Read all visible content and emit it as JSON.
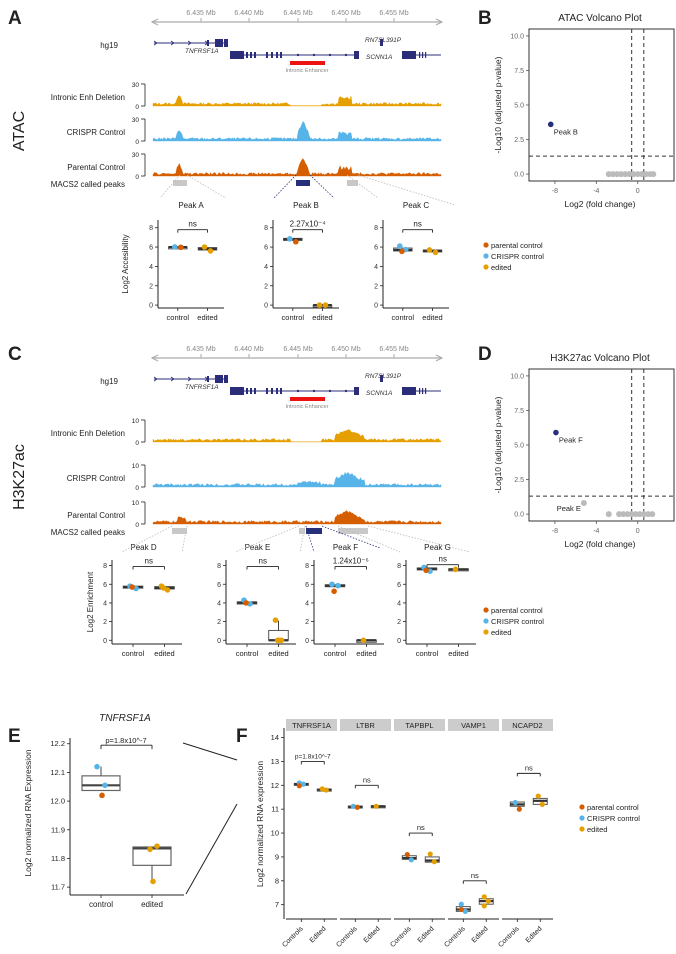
{
  "colors": {
    "parental": "#d55e00",
    "crispr": "#56b4e9",
    "edited": "#e69f00",
    "gene": "#2b2d7a",
    "enhancer": "#ee1111",
    "peak_grey": "#c8c8c8",
    "sig_point": "#26307a",
    "ns_point": "#bbbbbb",
    "facet_strip": "#cccccc"
  },
  "panels": {
    "A": "A",
    "B": "B",
    "C": "C",
    "D": "D",
    "E": "E",
    "F": "F"
  },
  "genome_track": {
    "axis_ticks": [
      "6.435 Mb",
      "6.440 Mb",
      "6.445 Mb",
      "6.450 Mb",
      "6.455 Mb"
    ],
    "assembly": "hg19",
    "genes": [
      "TNFRSF1A",
      "RN7SL391P",
      "SCNN1A"
    ],
    "enhancer_label": "Intronic Enhancer",
    "peaks_label": "MACS2 called peaks"
  },
  "atac": {
    "assay_label": "ATAC",
    "tracks": [
      {
        "label": "Intronic Enh Deletion",
        "ymax": "30",
        "ymin": "0",
        "color_key": "edited"
      },
      {
        "label": "CRISPR Control",
        "ymax": "30",
        "ymin": "0",
        "color_key": "crispr"
      },
      {
        "label": "Parental Control",
        "ymax": "30",
        "ymin": "0",
        "color_key": "parental"
      }
    ],
    "ylabel": "Log2 Accesibility",
    "peaks": [
      {
        "name": "Peak A",
        "stat": "ns"
      },
      {
        "name": "Peak B",
        "stat": "2.27x10⁻⁴"
      },
      {
        "name": "Peak C",
        "stat": "ns"
      }
    ]
  },
  "h3k27ac": {
    "assay_label": "H3K27ac",
    "tracks": [
      {
        "label": "Intronic Enh Deletion",
        "ymax": "10",
        "ymin": "0",
        "color_key": "edited"
      },
      {
        "label": "CRISPR Control",
        "ymax": "10",
        "ymin": "0",
        "color_key": "crispr"
      },
      {
        "label": "Parental Control",
        "ymax": "10",
        "ymin": "0",
        "color_key": "parental"
      }
    ],
    "ylabel": "Log2 Enrichment",
    "peaks": [
      {
        "name": "Peak D",
        "stat": "ns"
      },
      {
        "name": "Peak E",
        "stat": "ns"
      },
      {
        "name": "Peak F",
        "stat": "1.24x10⁻⁶"
      },
      {
        "name": "Peak G",
        "stat": "ns"
      }
    ]
  },
  "legend": [
    {
      "label": "parental control",
      "color_key": "parental"
    },
    {
      "label": "CRISPR control",
      "color_key": "crispr"
    },
    {
      "label": "edited",
      "color_key": "edited"
    }
  ],
  "chart_data": [
    {
      "id": "A",
      "type": "scatter",
      "title": "ATAC peak accessibility",
      "ylabel": "Log2 Accesibility",
      "ylim": [
        0,
        8
      ],
      "yticks": [
        "0",
        "2",
        "4",
        "6",
        "8"
      ],
      "categories": [
        "control",
        "edited"
      ],
      "facets": [
        {
          "name": "Peak A",
          "stat": "ns",
          "control": {
            "median": 6.0,
            "q1": 5.95,
            "q3": 6.02,
            "points": [
              {
                "v": 6.02,
                "g": "crispr"
              },
              {
                "v": 5.98,
                "g": "parental"
              }
            ]
          },
          "edited": {
            "median": 5.8,
            "q1": 5.7,
            "q3": 5.95,
            "points": [
              {
                "v": 6.0,
                "g": "edited"
              },
              {
                "v": 5.6,
                "g": "edited"
              }
            ]
          }
        },
        {
          "name": "Peak B",
          "stat": "2.27x10^-4",
          "control": {
            "median": 6.8,
            "q1": 6.7,
            "q3": 6.9,
            "points": [
              {
                "v": 6.85,
                "g": "crispr"
              },
              {
                "v": 6.55,
                "g": "parental"
              }
            ]
          },
          "edited": {
            "median": 0.0,
            "q1": 0.0,
            "q3": 0.0,
            "points": [
              {
                "v": 0.0,
                "g": "edited"
              },
              {
                "v": 0.0,
                "g": "edited"
              }
            ]
          }
        },
        {
          "name": "Peak C",
          "stat": "ns",
          "control": {
            "median": 5.7,
            "q1": 5.6,
            "q3": 5.9,
            "points": [
              {
                "v": 6.1,
                "g": "crispr"
              },
              {
                "v": 5.75,
                "g": "crispr"
              },
              {
                "v": 5.55,
                "g": "parental"
              }
            ]
          },
          "edited": {
            "median": 5.6,
            "q1": 5.55,
            "q3": 5.7,
            "points": [
              {
                "v": 5.7,
                "g": "edited"
              },
              {
                "v": 5.45,
                "g": "edited"
              }
            ]
          }
        }
      ]
    },
    {
      "id": "B",
      "type": "scatter",
      "title": "ATAC Volcano Plot",
      "xlabel": "Log2 (fold change)",
      "ylabel": "-Log10 (adjusted p-value)",
      "xlim": [
        -10.5,
        3.5
      ],
      "ylim": [
        -0.5,
        10.5
      ],
      "xticks": [
        "-8",
        "-4",
        "0"
      ],
      "yticks": [
        "0.0",
        "2.5",
        "5.0",
        "7.5",
        "10.0"
      ],
      "thresholds": {
        "x": [
          -0.585,
          0.585
        ],
        "y": 1.3
      },
      "points": [
        {
          "x": -8.4,
          "y": 3.6,
          "label": "Peak B",
          "sig": true
        },
        {
          "x": -2.8,
          "y": 0.0
        },
        {
          "x": -2.4,
          "y": 0.0
        },
        {
          "x": -2.0,
          "y": 0.0
        },
        {
          "x": -1.6,
          "y": 0.0
        },
        {
          "x": -1.2,
          "y": 0.0
        },
        {
          "x": -0.8,
          "y": 0.0
        },
        {
          "x": -0.4,
          "y": 0.0
        },
        {
          "x": 0.0,
          "y": 0.0
        },
        {
          "x": 0.4,
          "y": 0.0
        },
        {
          "x": 0.8,
          "y": 0.0
        },
        {
          "x": 1.2,
          "y": 0.0
        },
        {
          "x": 1.5,
          "y": 0.0
        }
      ]
    },
    {
      "id": "C",
      "type": "scatter",
      "title": "H3K27ac peak enrichment",
      "ylabel": "Log2 Enrichment",
      "ylim": [
        0,
        8
      ],
      "yticks": [
        "0",
        "2",
        "4",
        "6",
        "8"
      ],
      "categories": [
        "control",
        "edited"
      ],
      "facets": [
        {
          "name": "Peak D",
          "stat": "ns",
          "control": {
            "median": 5.7,
            "q1": 5.65,
            "q3": 5.8,
            "points": [
              {
                "v": 5.8,
                "g": "crispr"
              },
              {
                "v": 5.55,
                "g": "crispr"
              },
              {
                "v": 5.7,
                "g": "parental"
              }
            ]
          },
          "edited": {
            "median": 5.6,
            "q1": 5.5,
            "q3": 5.75,
            "points": [
              {
                "v": 5.8,
                "g": "edited"
              },
              {
                "v": 5.4,
                "g": "edited"
              },
              {
                "v": 5.6,
                "g": "edited"
              }
            ]
          }
        },
        {
          "name": "Peak E",
          "stat": "ns",
          "control": {
            "median": 4.05,
            "q1": 4.0,
            "q3": 4.1,
            "points": [
              {
                "v": 4.3,
                "g": "crispr"
              },
              {
                "v": 3.9,
                "g": "crispr"
              },
              {
                "v": 4.0,
                "g": "parental"
              }
            ]
          },
          "edited": {
            "median": 0.0,
            "q1": 0.0,
            "q3": 1.05,
            "whisker_hi": 2.1,
            "points": [
              {
                "v": 2.15,
                "g": "edited"
              },
              {
                "v": 0.0,
                "g": "edited"
              },
              {
                "v": 0.0,
                "g": "edited"
              },
              {
                "v": 0.0,
                "g": "edited"
              }
            ]
          }
        },
        {
          "name": "Peak F",
          "stat": "1.24x10^-6",
          "control": {
            "median": 5.85,
            "q1": 5.8,
            "q3": 5.95,
            "points": [
              {
                "v": 6.0,
                "g": "crispr"
              },
              {
                "v": 5.85,
                "g": "crispr"
              },
              {
                "v": 5.25,
                "g": "parental"
              }
            ]
          },
          "edited": {
            "median": 0.0,
            "q1": 0.0,
            "q3": 0.0,
            "points": [
              {
                "v": 0.0,
                "g": "edited"
              }
            ]
          }
        },
        {
          "name": "Peak G",
          "stat": "ns",
          "control": {
            "median": 7.65,
            "q1": 7.55,
            "q3": 7.75,
            "points": [
              {
                "v": 7.8,
                "g": "crispr"
              },
              {
                "v": 7.4,
                "g": "crispr"
              },
              {
                "v": 7.5,
                "g": "parental"
              }
            ]
          },
          "edited": {
            "median": 7.6,
            "q1": 7.6,
            "q3": 7.65,
            "points": [
              {
                "v": 7.6,
                "g": "edited"
              }
            ]
          }
        }
      ]
    },
    {
      "id": "D",
      "type": "scatter",
      "title": "H3K27ac Volcano Plot",
      "xlabel": "Log2 (fold change)",
      "ylabel": "-Log10 (adjusted p-value)",
      "xlim": [
        -10.5,
        3.5
      ],
      "ylim": [
        -0.5,
        10.5
      ],
      "xticks": [
        "-8",
        "-4",
        "0"
      ],
      "yticks": [
        "0.0",
        "2.5",
        "5.0",
        "7.5",
        "10.0"
      ],
      "thresholds": {
        "x": [
          -0.585,
          0.585
        ],
        "y": 1.3
      },
      "points": [
        {
          "x": -7.9,
          "y": 5.9,
          "label": "Peak F",
          "sig": true
        },
        {
          "x": -5.2,
          "y": 0.8,
          "label": "Peak E"
        },
        {
          "x": -2.8,
          "y": 0.0
        },
        {
          "x": -1.8,
          "y": 0.0
        },
        {
          "x": -1.4,
          "y": 0.0
        },
        {
          "x": -1.0,
          "y": 0.0
        },
        {
          "x": -0.6,
          "y": 0.0
        },
        {
          "x": -0.2,
          "y": 0.0
        },
        {
          "x": 0.2,
          "y": 0.0
        },
        {
          "x": 0.6,
          "y": 0.0
        },
        {
          "x": 1.0,
          "y": 0.0
        },
        {
          "x": 1.4,
          "y": 0.0
        }
      ]
    },
    {
      "id": "E",
      "type": "scatter",
      "title": "TNFRSF1A",
      "ylabel": "Log2 normalized RNA Expression",
      "ylim": [
        11.69,
        12.22
      ],
      "yticks": [
        "11.7",
        "11.8",
        "11.9",
        "12.0",
        "12.1",
        "12.2"
      ],
      "categories": [
        "control",
        "edited"
      ],
      "stat": "p=1.8x10^-7",
      "control": {
        "median": 12.055,
        "q1": 12.037,
        "q3": 12.088,
        "whisker_hi": 12.12,
        "points": [
          {
            "v": 12.12,
            "g": "crispr"
          },
          {
            "v": 12.055,
            "g": "crispr"
          },
          {
            "v": 12.02,
            "g": "parental"
          }
        ]
      },
      "edited": {
        "median": 11.835,
        "q1": 11.776,
        "q3": 11.84,
        "whisker_lo": 11.72,
        "points": [
          {
            "v": 11.843,
            "g": "edited"
          },
          {
            "v": 11.832,
            "g": "edited"
          },
          {
            "v": 11.72,
            "g": "edited"
          }
        ]
      }
    },
    {
      "id": "F",
      "type": "scatter",
      "ylabel": "Log2 normalized RNA expression",
      "ylim": [
        6.4,
        14.4
      ],
      "yticks": [
        "7",
        "8",
        "9",
        "10",
        "11",
        "12",
        "13",
        "14"
      ],
      "categories": [
        "Controls",
        "Edited"
      ],
      "facets": [
        {
          "name": "TNFRSF1A",
          "stat": "p=1.8x10^-7",
          "stat_y": 13,
          "control": {
            "median": 12.05,
            "q1": 12.02,
            "q3": 12.08,
            "points": [
              {
                "v": 12.1,
                "g": "crispr"
              },
              {
                "v": 12.05,
                "g": "crispr"
              },
              {
                "v": 11.98,
                "g": "parental"
              }
            ]
          },
          "edited": {
            "median": 11.82,
            "q1": 11.78,
            "q3": 11.84,
            "points": [
              {
                "v": 11.85,
                "g": "edited"
              },
              {
                "v": 11.8,
                "g": "edited"
              }
            ]
          }
        },
        {
          "name": "LTBR",
          "stat": "ns",
          "stat_y": 12,
          "control": {
            "median": 11.1,
            "q1": 11.08,
            "q3": 11.13,
            "points": [
              {
                "v": 11.12,
                "g": "crispr"
              },
              {
                "v": 11.08,
                "g": "parental"
              }
            ]
          },
          "edited": {
            "median": 11.12,
            "q1": 11.1,
            "q3": 11.14,
            "points": [
              {
                "v": 11.12,
                "g": "edited"
              }
            ]
          }
        },
        {
          "name": "TAPBPL",
          "stat": "ns",
          "stat_y": 10,
          "control": {
            "median": 8.95,
            "q1": 8.9,
            "q3": 9.05,
            "points": [
              {
                "v": 9.1,
                "g": "parental"
              },
              {
                "v": 8.88,
                "g": "crispr"
              }
            ]
          },
          "edited": {
            "median": 8.85,
            "q1": 8.78,
            "q3": 9.0,
            "points": [
              {
                "v": 9.12,
                "g": "edited"
              },
              {
                "v": 8.8,
                "g": "edited"
              }
            ]
          }
        },
        {
          "name": "VAMP1",
          "stat": "ns",
          "stat_y": 8,
          "control": {
            "median": 6.8,
            "q1": 6.72,
            "q3": 6.92,
            "points": [
              {
                "v": 7.02,
                "g": "crispr"
              },
              {
                "v": 6.72,
                "g": "crispr"
              },
              {
                "v": 6.8,
                "g": "parental"
              }
            ]
          },
          "edited": {
            "median": 7.15,
            "q1": 7.02,
            "q3": 7.25,
            "points": [
              {
                "v": 7.33,
                "g": "edited"
              },
              {
                "v": 7.15,
                "g": "edited"
              },
              {
                "v": 6.95,
                "g": "edited"
              }
            ]
          }
        },
        {
          "name": "NCAPD2",
          "stat": "ns",
          "stat_y": 12.5,
          "control": {
            "median": 11.2,
            "q1": 11.12,
            "q3": 11.3,
            "points": [
              {
                "v": 11.28,
                "g": "crispr"
              },
              {
                "v": 11.0,
                "g": "parental"
              }
            ]
          },
          "edited": {
            "median": 11.35,
            "q1": 11.2,
            "q3": 11.45,
            "points": [
              {
                "v": 11.55,
                "g": "edited"
              },
              {
                "v": 11.2,
                "g": "edited"
              }
            ]
          }
        }
      ]
    }
  ]
}
